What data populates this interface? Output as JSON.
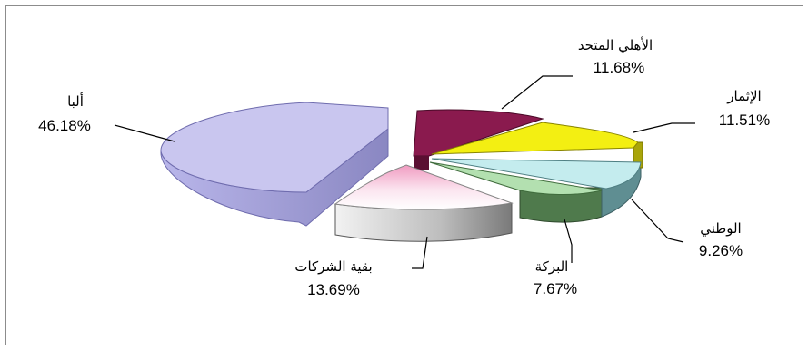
{
  "chart_data": {
    "type": "pie",
    "title": "",
    "slices": [
      {
        "label": "ألبا",
        "value": 46.18,
        "value_text": "46.18%",
        "color": "#c9c6ef",
        "side": "#8f8cc4"
      },
      {
        "label": "الأهلي المتحد",
        "value": 11.68,
        "value_text": "11.68%",
        "color": "#8a1a4e",
        "side": "#5a0f32"
      },
      {
        "label": "الإثمار",
        "value": 11.51,
        "value_text": "11.51%",
        "color": "#f3ef12",
        "side": "#a9a50a"
      },
      {
        "label": "الوطني",
        "value": 9.26,
        "value_text": "9.26%",
        "color": "#c4ecee",
        "side": "#5f8e92"
      },
      {
        "label": "البركة",
        "value": 7.67,
        "value_text": "7.67%",
        "color": "#b3e0b0",
        "side": "#4f7a4c"
      },
      {
        "label": "بقية الشركات",
        "value": 13.69,
        "value_text": "13.69%",
        "color": "#f6d6e6",
        "side": "#9c9c9c"
      }
    ],
    "legend": "none",
    "style": "3d-exploded-pie"
  }
}
